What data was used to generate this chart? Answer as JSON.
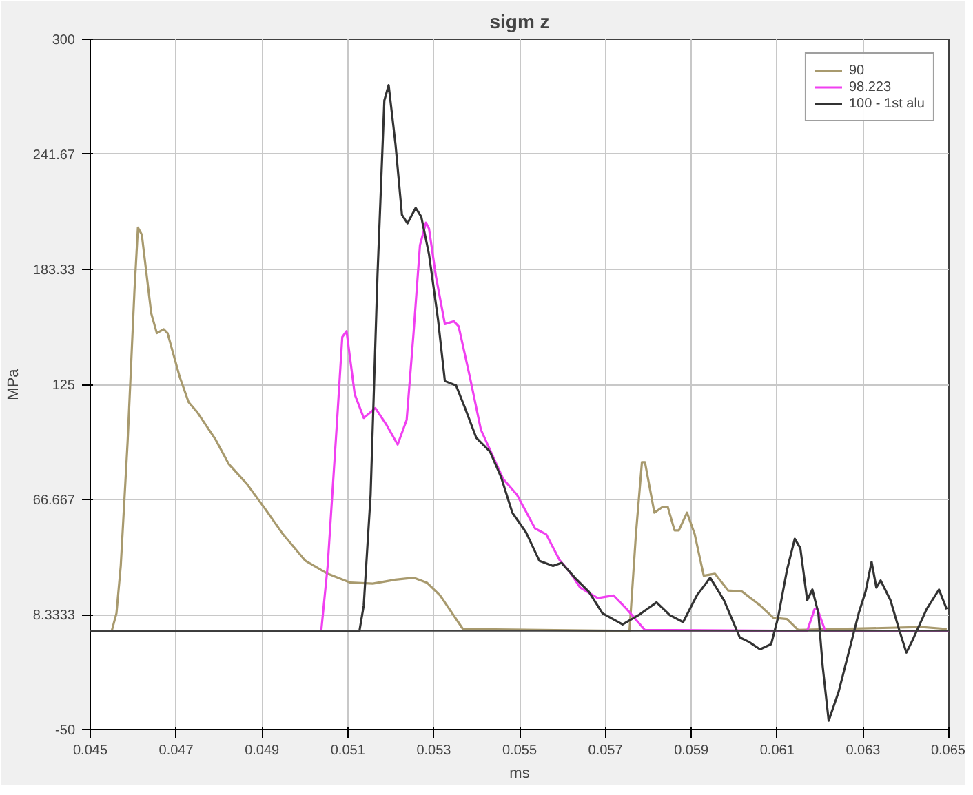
{
  "chart_data": {
    "type": "line",
    "title": "sigm z",
    "xlabel": "ms",
    "ylabel": "MPa",
    "xlim": [
      0.045,
      0.065
    ],
    "xticks": [
      0.045,
      0.047,
      0.049,
      0.051,
      0.053,
      0.055,
      0.057,
      0.059,
      0.061,
      0.063,
      0.065
    ],
    "ylim": [
      -50,
      300
    ],
    "yticks": [
      -50,
      8.3333,
      66.667,
      125,
      183.33,
      241.67,
      300
    ],
    "grid": true,
    "legend": "top right",
    "line_style": "solid",
    "ref_lines": [
      {
        "axis": "y",
        "value": 0,
        "color": "#404040"
      }
    ],
    "series": [
      {
        "name": "90",
        "color": "#a89a6e",
        "x": [
          0.045,
          0.0455,
          0.04561,
          0.04571,
          0.04587,
          0.04603,
          0.04611,
          0.0462,
          0.04642,
          0.04655,
          0.04671,
          0.0468,
          0.04708,
          0.04729,
          0.04749,
          0.04792,
          0.04823,
          0.04865,
          0.04907,
          0.04949,
          0.05001,
          0.05053,
          0.05106,
          0.05158,
          0.05211,
          0.05253,
          0.05284,
          0.05315,
          0.05368,
          0.05756,
          0.05771,
          0.05785,
          0.05792,
          0.05814,
          0.05834,
          0.05845,
          0.05861,
          0.05871,
          0.0589,
          0.05908,
          0.05929,
          0.05955,
          0.05986,
          0.06018,
          0.0606,
          0.06091,
          0.06123,
          0.06149,
          0.06437,
          0.06495
        ],
        "values": [
          0,
          0,
          9,
          33,
          96,
          173,
          204.5,
          201,
          161,
          151,
          153,
          151,
          129,
          116,
          111,
          97,
          84.5,
          74.5,
          62,
          49,
          35.6,
          29,
          24.5,
          24,
          26,
          27,
          24.5,
          18,
          1,
          0,
          49,
          85.6,
          85.6,
          60,
          63,
          63,
          51,
          51,
          60,
          49,
          28,
          29,
          20.5,
          20,
          13,
          6.7,
          6,
          0.5,
          2,
          1
        ]
      },
      {
        "name": "98.223",
        "color": "#f040f0",
        "x": [
          0.045,
          0.05038,
          0.05053,
          0.05075,
          0.05087,
          0.05097,
          0.05116,
          0.05137,
          0.05164,
          0.0519,
          0.05216,
          0.05237,
          0.05253,
          0.05268,
          0.05282,
          0.05289,
          0.05305,
          0.05326,
          0.05347,
          0.05358,
          0.05384,
          0.0541,
          0.05462,
          0.05494,
          0.05536,
          0.05562,
          0.05593,
          0.0562,
          0.05641,
          0.05682,
          0.05719,
          0.0575,
          0.05792,
          0.0617,
          0.06187,
          0.06194,
          0.06212,
          0.065
        ],
        "values": [
          0,
          0,
          33,
          107,
          149,
          152,
          120,
          108,
          113,
          104.5,
          94.5,
          107,
          151,
          195.6,
          207,
          204,
          180,
          155.6,
          157,
          154.5,
          129,
          102,
          77,
          69,
          52,
          49,
          36,
          29,
          22,
          16.7,
          18,
          11,
          0.5,
          0,
          11,
          11,
          0,
          0
        ]
      },
      {
        "name": "100 - 1st alu",
        "color": "#333333",
        "x": [
          0.045,
          0.05127,
          0.05137,
          0.05153,
          0.05169,
          0.05185,
          0.05195,
          0.05211,
          0.05226,
          0.05239,
          0.05258,
          0.05271,
          0.05289,
          0.0531,
          0.05326,
          0.05352,
          0.05373,
          0.05399,
          0.05431,
          0.05457,
          0.05483,
          0.05515,
          0.05546,
          0.05578,
          0.05598,
          0.0563,
          0.05661,
          0.05693,
          0.0574,
          0.05777,
          0.05819,
          0.0585,
          0.05881,
          0.05913,
          0.05944,
          0.05976,
          0.06013,
          0.06034,
          0.0606,
          0.06086,
          0.06102,
          0.06123,
          0.06141,
          0.06154,
          0.0617,
          0.06182,
          0.06196,
          0.06206,
          0.0622,
          0.06243,
          0.06269,
          0.0629,
          0.06306,
          0.0632,
          0.06331,
          0.06341,
          0.06364,
          0.06385,
          0.06401,
          0.06416,
          0.06448,
          0.06477,
          0.06495
        ],
        "values": [
          0,
          0,
          13,
          69,
          180,
          269,
          276.7,
          246.7,
          211,
          206.7,
          214.5,
          210,
          191,
          158,
          126.7,
          124.5,
          113,
          98,
          91,
          78,
          60,
          50,
          35.6,
          33,
          34.5,
          26.7,
          20,
          9,
          3.3,
          8,
          14.5,
          8,
          4.5,
          18,
          27,
          15.6,
          -3.3,
          -5.5,
          -9.3,
          -6.7,
          6.7,
          31,
          46.7,
          42,
          15.6,
          21,
          9,
          -17.8,
          -45.5,
          -31,
          -8.9,
          9,
          20,
          35,
          22,
          25.6,
          15.6,
          0,
          -11,
          -4.4,
          11,
          21,
          11
        ]
      }
    ]
  }
}
